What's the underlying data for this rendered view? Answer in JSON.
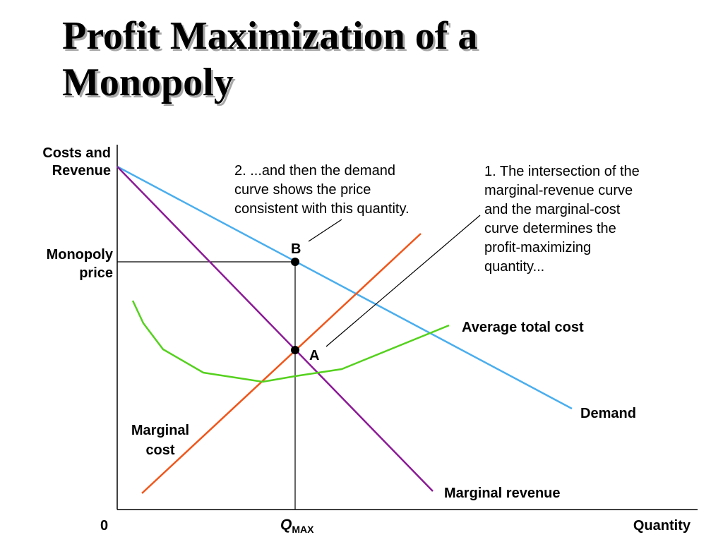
{
  "title": {
    "line1": "Profit Maximization of a",
    "line2": "Monopoly"
  },
  "axes": {
    "y_label_line1": "Costs and",
    "y_label_line2": "Revenue",
    "x_label": "Quantity",
    "origin": "0",
    "q_max_main": "Q",
    "q_max_sub": "MAX",
    "monopoly_price_line1": "Monopoly",
    "monopoly_price_line2": "price"
  },
  "curves": {
    "demand": "Demand",
    "marginal_revenue": "Marginal revenue",
    "average_total_cost": "Average total cost",
    "marginal_cost_line1": "Marginal",
    "marginal_cost_line2": "cost"
  },
  "points": {
    "a": "A",
    "b": "B"
  },
  "annotations": {
    "step1": [
      "1. The intersection of the",
      "marginal-revenue curve",
      "and the marginal-cost",
      "curve determines the",
      "profit-maximizing",
      "quantity..."
    ],
    "step2": [
      "2. ...and then the demand",
      "curve shows the price",
      "consistent with this quantity."
    ]
  },
  "colors": {
    "demand": "#4aaeee",
    "marginal_revenue": "#8b1a96",
    "marginal_cost": "#f0561a",
    "average_total_cost": "#55d11e",
    "axis": "#000000"
  }
}
